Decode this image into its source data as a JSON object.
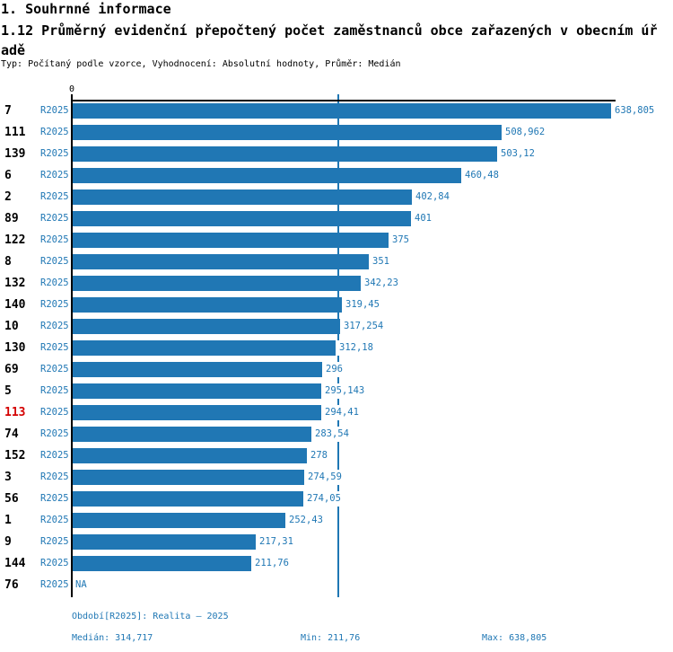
{
  "header": {
    "title": "1. Souhrnné informace",
    "subtitle": "1.12 Průměrný evidenční přepočtený počet zaměstnanců obce zařazených v obecním úřadě",
    "meta": "Typ: Počítaný podle vzorce, Vyhodnocení: Absolutní hodnoty, Průměr: Medián"
  },
  "chart_data": {
    "type": "bar",
    "orientation": "horizontal",
    "axis_origin_label": "0",
    "xlim": [
      0,
      638.805
    ],
    "xmax": 638.805,
    "period_label": "R2025",
    "highlight_category": "113",
    "categories": [
      "7",
      "111",
      "139",
      "6",
      "2",
      "89",
      "122",
      "8",
      "132",
      "140",
      "10",
      "130",
      "69",
      "5",
      "113",
      "74",
      "152",
      "3",
      "56",
      "1",
      "9",
      "144",
      "76"
    ],
    "values": [
      638.805,
      508.962,
      503.12,
      460.48,
      402.84,
      401,
      375,
      351,
      342.23,
      319.45,
      317.254,
      312.18,
      296,
      295.143,
      294.41,
      283.54,
      278,
      274.59,
      274.05,
      252.43,
      217.31,
      211.76,
      null
    ],
    "value_labels": [
      "638,805",
      "508,962",
      "503,12",
      "460,48",
      "402,84",
      "401",
      "375",
      "351",
      "342,23",
      "319,45",
      "317,254",
      "312,18",
      "296",
      "295,143",
      "294,41",
      "283,54",
      "278",
      "274,59",
      "274,05",
      "252,43",
      "217,31",
      "211,76",
      "NA"
    ],
    "median_value": 314.717,
    "grid": false,
    "legend": "none",
    "colors": {
      "bar": "#2077b4",
      "blue_text": "#1f77b4",
      "highlight_text": "#d40000",
      "axis": "#000000",
      "median_line": "#1f77b4"
    }
  },
  "footer": {
    "period_line": "Období[R2025]: Realita – 2025",
    "median": "Medián: 314,717",
    "min": "Min: 211,76",
    "max": "Max: 638,805"
  }
}
